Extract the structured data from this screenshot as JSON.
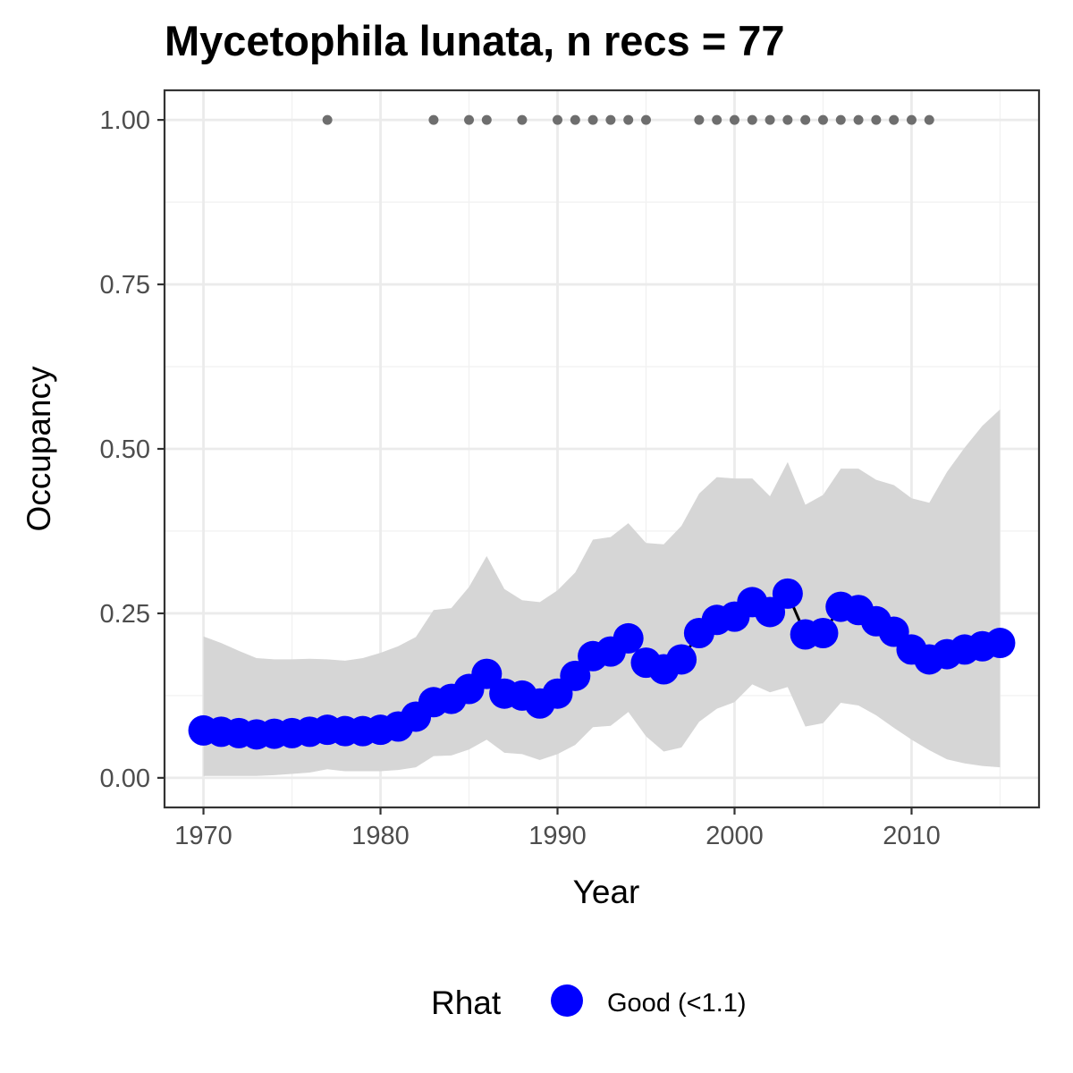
{
  "chart_data": {
    "type": "line",
    "title": "Mycetophila lunata, n recs = 77",
    "xlabel": "Year",
    "ylabel": "Occupancy",
    "xlim": [
      1967.8,
      2017.2
    ],
    "ylim": [
      -0.045,
      1.045
    ],
    "x_ticks": [
      1970,
      1980,
      1990,
      2000,
      2010
    ],
    "x_tick_labels": [
      "1970",
      "1980",
      "1990",
      "2000",
      "2010"
    ],
    "y_ticks": [
      0,
      0.25,
      0.5,
      0.75,
      1.0
    ],
    "y_tick_labels": [
      "0.00",
      "0.25",
      "0.50",
      "0.75",
      "1.00"
    ],
    "grid": true,
    "legend": {
      "title": "Rhat",
      "position": "bottom",
      "entries": [
        {
          "label": "Good (<1.1)",
          "color": "#0000ff"
        }
      ]
    },
    "colors": {
      "estimate": "#0000ff",
      "ribbon": "#d6d6d6",
      "records": "#6e6e6e",
      "line": "#000000"
    },
    "series": [
      {
        "name": "Occupancy",
        "x": [
          1970,
          1971,
          1972,
          1973,
          1974,
          1975,
          1976,
          1977,
          1978,
          1979,
          1980,
          1981,
          1982,
          1983,
          1984,
          1985,
          1986,
          1987,
          1988,
          1989,
          1990,
          1991,
          1992,
          1993,
          1994,
          1995,
          1996,
          1997,
          1998,
          1999,
          2000,
          2001,
          2002,
          2003,
          2004,
          2005,
          2006,
          2007,
          2008,
          2009,
          2010,
          2011,
          2012,
          2013,
          2014,
          2015
        ],
        "y": [
          0.072,
          0.07,
          0.068,
          0.066,
          0.067,
          0.068,
          0.07,
          0.073,
          0.071,
          0.071,
          0.073,
          0.078,
          0.093,
          0.115,
          0.12,
          0.135,
          0.158,
          0.128,
          0.125,
          0.113,
          0.128,
          0.155,
          0.185,
          0.192,
          0.212,
          0.175,
          0.165,
          0.18,
          0.22,
          0.24,
          0.245,
          0.267,
          0.252,
          0.28,
          0.218,
          0.22,
          0.26,
          0.255,
          0.238,
          0.222,
          0.195,
          0.18,
          0.188,
          0.195,
          0.2,
          0.205
        ],
        "lower": [
          0.003,
          0.003,
          0.003,
          0.003,
          0.004,
          0.006,
          0.008,
          0.013,
          0.01,
          0.01,
          0.01,
          0.012,
          0.016,
          0.033,
          0.034,
          0.043,
          0.058,
          0.038,
          0.036,
          0.027,
          0.036,
          0.05,
          0.077,
          0.079,
          0.1,
          0.063,
          0.04,
          0.046,
          0.085,
          0.105,
          0.115,
          0.142,
          0.13,
          0.138,
          0.078,
          0.083,
          0.114,
          0.11,
          0.095,
          0.076,
          0.058,
          0.042,
          0.028,
          0.022,
          0.018,
          0.016
        ],
        "upper": [
          0.215,
          0.205,
          0.193,
          0.182,
          0.18,
          0.18,
          0.181,
          0.18,
          0.178,
          0.182,
          0.19,
          0.2,
          0.214,
          0.255,
          0.258,
          0.29,
          0.337,
          0.287,
          0.27,
          0.267,
          0.285,
          0.312,
          0.362,
          0.366,
          0.387,
          0.357,
          0.355,
          0.383,
          0.432,
          0.457,
          0.455,
          0.455,
          0.428,
          0.48,
          0.415,
          0.43,
          0.47,
          0.47,
          0.453,
          0.445,
          0.425,
          0.418,
          0.465,
          0.502,
          0.535,
          0.56
        ]
      }
    ],
    "records": {
      "name": "Records",
      "x": [
        1977,
        1983,
        1985,
        1986,
        1988,
        1990,
        1991,
        1992,
        1993,
        1994,
        1995,
        1998,
        1999,
        2000,
        2001,
        2002,
        2003,
        2004,
        2005,
        2006,
        2007,
        2008,
        2009,
        2010,
        2011
      ],
      "y": [
        1,
        1,
        1,
        1,
        1,
        1,
        1,
        1,
        1,
        1,
        1,
        1,
        1,
        1,
        1,
        1,
        1,
        1,
        1,
        1,
        1,
        1,
        1,
        1,
        1
      ]
    }
  }
}
